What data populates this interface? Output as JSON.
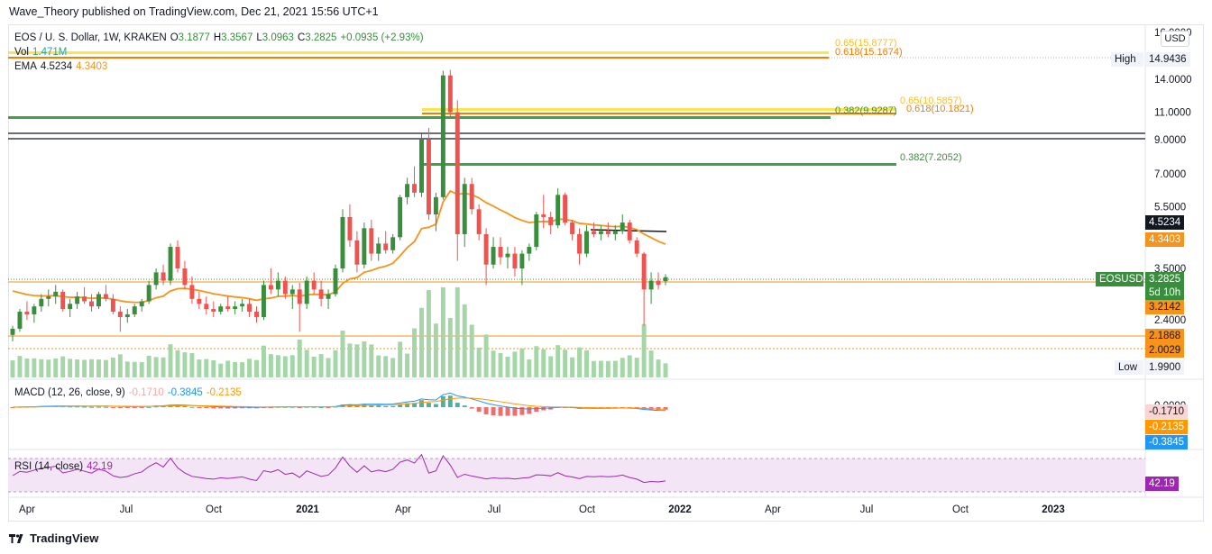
{
  "publisher": "Wave_Theory published on TradingView.com, Dec 21, 2021 15:56 UTC+1",
  "footer": {
    "brand": "TradingView"
  },
  "currency_button": "USD",
  "legend": {
    "symbol": "EOS / U. S. Dollar, 1W, KRAKEN",
    "ohlc": [
      {
        "k": "O",
        "v": "3.1877"
      },
      {
        "k": "H",
        "v": "3.3567"
      },
      {
        "k": "L",
        "v": "3.0963"
      },
      {
        "k": "C",
        "v": "3.2825"
      }
    ],
    "change": "+0.0935 (+2.93%)",
    "vol_label": "Vol",
    "vol_value": "1.471M",
    "ema_label": "EMA",
    "ema_value1": "4.5234",
    "ema_value2": "4.3403"
  },
  "macd_legend": {
    "label": "MACD (12, 26, close, 9)",
    "v1": "-0.1710",
    "v2": "-0.3845",
    "v3": "-0.2135"
  },
  "rsi_legend": {
    "label": "RSI (14, close)",
    "v": "42.19"
  },
  "colors": {
    "up": "#26a69a",
    "down": "#ef5350",
    "up_candle": "#388e3c",
    "ema_orange": "#f7931a",
    "fib_yellow": "#fbe54f",
    "fib_green": "#43a047",
    "macd_blue": "#2196f3",
    "macd_orange": "#ff9800",
    "rsi_purple": "#9c27b0"
  },
  "chart_data": {
    "type": "candlestick",
    "title": "EOS / U. S. Dollar, 1W, KRAKEN",
    "scale": "log",
    "price_axis_ticks": [
      "16.0000",
      "14.0000",
      "11.0000",
      "9.0000",
      "7.0000",
      "5.5000",
      "3.5000",
      "2.4000",
      "0.0000"
    ],
    "time_axis_ticks": [
      "Apr",
      "Jul",
      "Oct",
      "2021",
      "Apr",
      "Jul",
      "Oct",
      "2022",
      "Apr",
      "Jul",
      "Oct",
      "2023"
    ],
    "candles_ohlc": [
      [
        2.15,
        2.3,
        2.05,
        2.25
      ],
      [
        2.25,
        2.6,
        2.2,
        2.55
      ],
      [
        2.55,
        2.75,
        2.4,
        2.5
      ],
      [
        2.5,
        2.7,
        2.35,
        2.65
      ],
      [
        2.65,
        2.9,
        2.55,
        2.8
      ],
      [
        2.8,
        3.0,
        2.65,
        2.85
      ],
      [
        2.85,
        3.1,
        2.7,
        2.95
      ],
      [
        2.95,
        3.0,
        2.55,
        2.6
      ],
      [
        2.6,
        2.8,
        2.45,
        2.7
      ],
      [
        2.7,
        2.95,
        2.6,
        2.85
      ],
      [
        2.85,
        3.05,
        2.7,
        2.75
      ],
      [
        2.75,
        2.9,
        2.55,
        2.65
      ],
      [
        2.65,
        2.95,
        2.6,
        2.9
      ],
      [
        2.9,
        3.1,
        2.75,
        2.8
      ],
      [
        2.8,
        2.9,
        2.5,
        2.55
      ],
      [
        2.55,
        2.65,
        2.2,
        2.45
      ],
      [
        2.45,
        2.6,
        2.35,
        2.5
      ],
      [
        2.5,
        2.7,
        2.45,
        2.65
      ],
      [
        2.65,
        2.8,
        2.55,
        2.75
      ],
      [
        2.75,
        3.2,
        2.7,
        3.1
      ],
      [
        3.1,
        3.5,
        3.0,
        3.4
      ],
      [
        3.4,
        3.6,
        3.1,
        3.2
      ],
      [
        3.2,
        4.2,
        3.1,
        4.1
      ],
      [
        4.1,
        4.3,
        3.4,
        3.5
      ],
      [
        3.5,
        3.7,
        3.0,
        3.1
      ],
      [
        3.1,
        3.3,
        2.7,
        2.8
      ],
      [
        2.8,
        2.95,
        2.6,
        2.7
      ],
      [
        2.7,
        2.85,
        2.5,
        2.6
      ],
      [
        2.6,
        2.75,
        2.45,
        2.55
      ],
      [
        2.55,
        2.7,
        2.5,
        2.65
      ],
      [
        2.65,
        2.85,
        2.55,
        2.6
      ],
      [
        2.6,
        2.75,
        2.5,
        2.65
      ],
      [
        2.65,
        2.8,
        2.55,
        2.7
      ],
      [
        2.7,
        2.8,
        2.45,
        2.55
      ],
      [
        2.55,
        2.65,
        2.35,
        2.45
      ],
      [
        2.45,
        3.2,
        2.4,
        3.1
      ],
      [
        3.1,
        3.5,
        2.9,
        3.0
      ],
      [
        3.0,
        3.4,
        2.85,
        3.2
      ],
      [
        3.2,
        3.3,
        2.8,
        2.9
      ],
      [
        2.9,
        3.1,
        2.6,
        3.0
      ],
      [
        3.0,
        3.15,
        2.2,
        2.7
      ],
      [
        2.7,
        3.3,
        2.6,
        3.2
      ],
      [
        3.2,
        3.4,
        2.9,
        3.0
      ],
      [
        3.0,
        3.2,
        2.65,
        2.8
      ],
      [
        2.8,
        3.0,
        2.6,
        2.9
      ],
      [
        2.9,
        3.6,
        2.85,
        3.5
      ],
      [
        3.5,
        5.4,
        3.4,
        5.1
      ],
      [
        5.1,
        5.6,
        4.1,
        4.3
      ],
      [
        4.3,
        4.6,
        3.4,
        3.6
      ],
      [
        3.6,
        4.9,
        3.5,
        4.7
      ],
      [
        4.7,
        5.0,
        3.7,
        3.9
      ],
      [
        3.9,
        4.4,
        3.7,
        4.2
      ],
      [
        4.2,
        4.6,
        3.9,
        4.0
      ],
      [
        4.0,
        4.5,
        3.9,
        4.4
      ],
      [
        4.4,
        6.0,
        4.3,
        5.9
      ],
      [
        5.9,
        6.8,
        5.6,
        6.5
      ],
      [
        6.5,
        7.4,
        5.9,
        6.1
      ],
      [
        6.1,
        9.4,
        5.9,
        9.0
      ],
      [
        9.0,
        9.8,
        5.0,
        5.2
      ],
      [
        5.2,
        6.1,
        4.6,
        5.9
      ],
      [
        5.9,
        14.9,
        5.8,
        14.4
      ],
      [
        14.4,
        15.0,
        10.6,
        11.0
      ],
      [
        11.0,
        12.0,
        3.7,
        4.5
      ],
      [
        4.5,
        6.8,
        4.1,
        6.5
      ],
      [
        6.5,
        6.8,
        5.2,
        5.4
      ],
      [
        5.4,
        5.6,
        4.3,
        4.5
      ],
      [
        4.5,
        4.7,
        3.1,
        3.6
      ],
      [
        3.6,
        4.4,
        3.5,
        4.1
      ],
      [
        4.1,
        4.4,
        3.6,
        3.8
      ],
      [
        3.8,
        4.1,
        3.5,
        3.9
      ],
      [
        3.9,
        4.1,
        3.3,
        3.5
      ],
      [
        3.5,
        4.0,
        3.1,
        3.9
      ],
      [
        3.9,
        4.2,
        3.7,
        4.1
      ],
      [
        4.1,
        5.3,
        4.0,
        5.2
      ],
      [
        5.2,
        6.0,
        4.7,
        5.1
      ],
      [
        5.1,
        5.3,
        4.5,
        4.8
      ],
      [
        4.8,
        6.3,
        4.7,
        6.0
      ],
      [
        6.0,
        6.1,
        4.8,
        4.9
      ],
      [
        4.9,
        5.0,
        4.3,
        4.5
      ],
      [
        4.5,
        4.7,
        3.6,
        3.9
      ],
      [
        3.9,
        4.8,
        3.8,
        4.6
      ],
      [
        4.6,
        4.9,
        4.4,
        4.5
      ],
      [
        4.5,
        4.8,
        4.3,
        4.6
      ],
      [
        4.6,
        4.9,
        4.4,
        4.5
      ],
      [
        4.5,
        4.8,
        4.3,
        4.6
      ],
      [
        4.6,
        5.2,
        4.5,
        4.9
      ],
      [
        4.9,
        5.0,
        4.2,
        4.3
      ],
      [
        4.3,
        4.4,
        3.8,
        3.9
      ],
      [
        3.9,
        3.95,
        2.3,
        3.0
      ],
      [
        3.0,
        3.4,
        2.7,
        3.2
      ],
      [
        3.2,
        3.4,
        3.0,
        3.1
      ],
      [
        3.1877,
        3.3567,
        3.0963,
        3.2825
      ]
    ],
    "price_labels": {
      "high": "14.9436",
      "low": "1.9900",
      "last": "3.2825",
      "countdown": "5d 10h",
      "ema1": "4.5234",
      "ema2": "4.3403",
      "level1": "3.2142",
      "level2": "2.1868",
      "level3": "2.0029",
      "ticker": "EOSUSD",
      "high_label": "High",
      "low_label": "Low"
    },
    "fib_levels": [
      {
        "label": "0.65(15.8777)",
        "value": 15.8777
      },
      {
        "label": "0.618(15.1674)",
        "value": 15.1674
      },
      {
        "label": "0.65(10.5857)",
        "value": 10.5857
      },
      {
        "label": "0.618(10.1821)",
        "value": 10.1821
      },
      {
        "label": "0.382(9.9287)",
        "value": 9.9287
      },
      {
        "label": "0.382(7.2052)",
        "value": 7.2052
      }
    ],
    "macd_ticks": [
      "-0.1710",
      "-0.2135",
      "-0.3845"
    ],
    "rsi_value": "42.19"
  }
}
